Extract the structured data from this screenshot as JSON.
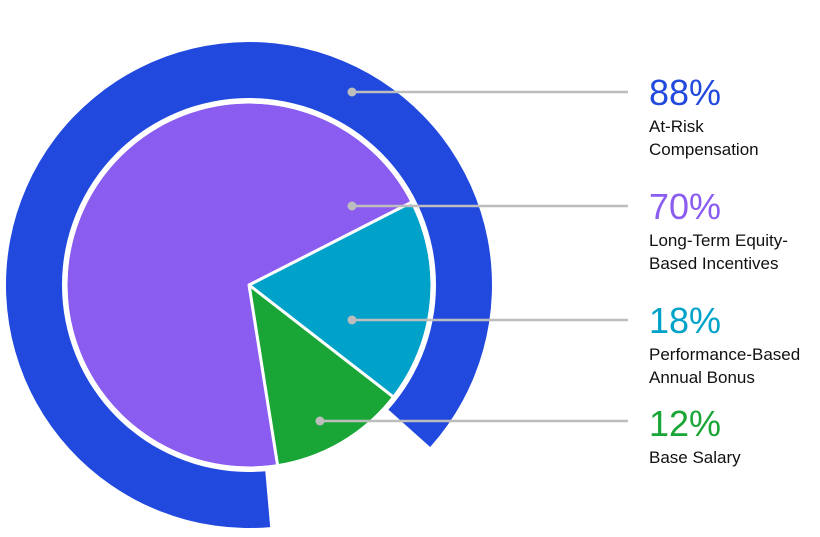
{
  "chart_data": {
    "type": "pie",
    "title": "",
    "outer_ring": {
      "name": "At-Risk Compensation",
      "value": 88,
      "color": "#2149DE"
    },
    "slices": [
      {
        "name": "Long-Term Equity-Based Incentives",
        "value": 70,
        "color": "#8B5CF0"
      },
      {
        "name": "Performance-Based Annual Bonus",
        "value": 18,
        "color": "#00A2C9"
      },
      {
        "name": "Base Salary",
        "value": 12,
        "color": "#1AA637"
      }
    ]
  },
  "legend": [
    {
      "value": "88%",
      "label": "At-Risk\nCompensation",
      "color": "#2149DE"
    },
    {
      "value": "70%",
      "label": "Long-Term Equity-\nBased Incentives",
      "color": "#8B5CF0"
    },
    {
      "value": "18%",
      "label": "Performance-Based\nAnnual Bonus",
      "color": "#00A2C9"
    },
    {
      "value": "12%",
      "label": "Base Salary",
      "color": "#1AA637"
    }
  ],
  "leader_color": "#BDBDBD"
}
